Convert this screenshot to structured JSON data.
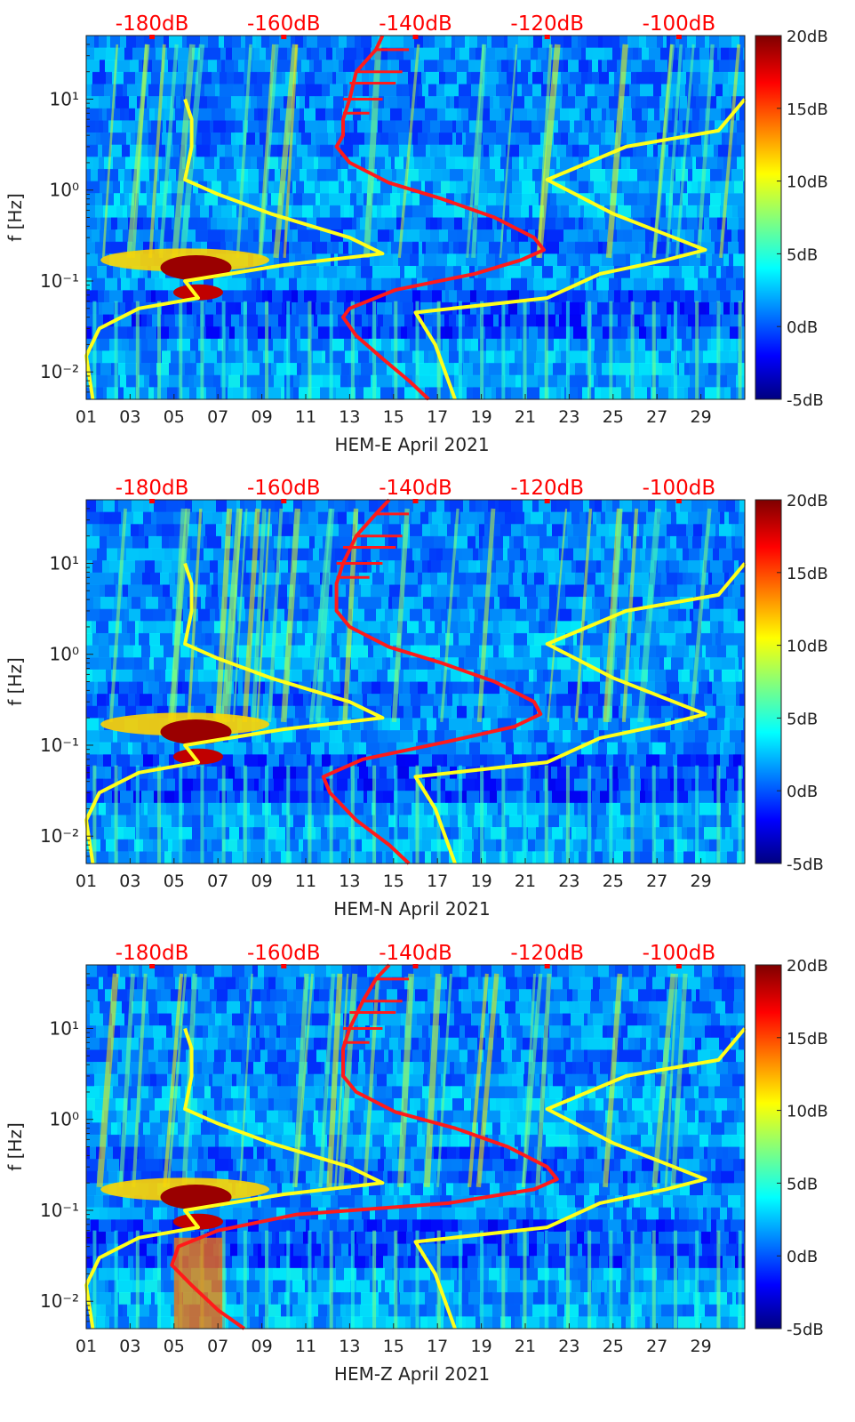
{
  "figure": {
    "panels": [
      {
        "xlabel": "HEM-E April 2021",
        "ylabel": "f [Hz]",
        "top_ticks": [
          "-180dB",
          "-160dB",
          "-140dB",
          "-120dB",
          "-100dB"
        ],
        "x_ticks": [
          "01",
          "03",
          "05",
          "07",
          "09",
          "11",
          "13",
          "15",
          "17",
          "19",
          "21",
          "23",
          "25",
          "27",
          "29"
        ],
        "y_ticks": [
          "10⁻²",
          "10⁻¹",
          "10⁰",
          "10¹"
        ],
        "colorbar_ticks": [
          "20dB",
          "15dB",
          "10dB",
          "5dB",
          "0dB",
          "-5dB"
        ]
      },
      {
        "xlabel": "HEM-N April 2021",
        "ylabel": "f [Hz]",
        "top_ticks": [
          "-180dB",
          "-160dB",
          "-140dB",
          "-120dB",
          "-100dB"
        ],
        "x_ticks": [
          "01",
          "03",
          "05",
          "07",
          "09",
          "11",
          "13",
          "15",
          "17",
          "19",
          "21",
          "23",
          "25",
          "27",
          "29"
        ],
        "y_ticks": [
          "10⁻²",
          "10⁻¹",
          "10⁰",
          "10¹"
        ],
        "colorbar_ticks": [
          "20dB",
          "15dB",
          "10dB",
          "5dB",
          "0dB",
          "-5dB"
        ]
      },
      {
        "xlabel": "HEM-Z April 2021",
        "ylabel": "f [Hz]",
        "top_ticks": [
          "-180dB",
          "-160dB",
          "-140dB",
          "-120dB",
          "-100dB"
        ],
        "x_ticks": [
          "01",
          "03",
          "05",
          "07",
          "09",
          "11",
          "13",
          "15",
          "17",
          "19",
          "21",
          "23",
          "25",
          "27",
          "29"
        ],
        "y_ticks": [
          "10⁻²",
          "10⁻¹",
          "10⁰",
          "10¹"
        ],
        "colorbar_ticks": [
          "20dB",
          "15dB",
          "10dB",
          "5dB",
          "0dB",
          "-5dB"
        ]
      }
    ]
  },
  "chart_data": [
    {
      "type": "heatmap",
      "title": "",
      "xlabel": "HEM-E April 2021",
      "ylabel": "f [Hz]",
      "x_unit": "day of April 2021",
      "xlim": [
        1,
        31
      ],
      "ylim": [
        0.005,
        50
      ],
      "y_scale": "log",
      "colorbar": {
        "range": [
          -5,
          20
        ],
        "unit": "dB",
        "colormap": "jet",
        "ticks": [
          20,
          15,
          10,
          5,
          0,
          -5
        ]
      },
      "top_axis": {
        "label_color": "#ff0000",
        "range": [
          -190,
          -90
        ],
        "unit": "dB",
        "ticks": [
          -180,
          -160,
          -140,
          -120,
          -100
        ]
      },
      "series": [
        {
          "color": "#ff1a1a",
          "points": [
            [
              -145,
              50
            ],
            [
              -146,
              35
            ],
            [
              -149,
              20
            ],
            [
              -150,
              10
            ],
            [
              -151,
              6
            ],
            [
              -151,
              4
            ],
            [
              -152,
              3
            ],
            [
              -150,
              2
            ],
            [
              -144,
              1.2
            ],
            [
              -136,
              0.8
            ],
            [
              -128,
              0.5
            ],
            [
              -122,
              0.3
            ],
            [
              -120.5,
              0.22
            ],
            [
              -124,
              0.17
            ],
            [
              -131,
              0.12
            ],
            [
              -143,
              0.08
            ],
            [
              -150,
              0.05
            ],
            [
              -151,
              0.04
            ],
            [
              -149,
              0.025
            ],
            [
              -145,
              0.014
            ],
            [
              -141,
              0.008
            ],
            [
              -138,
              0.005
            ]
          ]
        },
        {
          "color": "#ffff1a",
          "points": [
            [
              -175,
              10
            ],
            [
              -174,
              6
            ],
            [
              -174,
              3
            ],
            [
              -175,
              1.3
            ],
            [
              -170,
              0.9
            ],
            [
              -162,
              0.55
            ],
            [
              -150,
              0.3
            ],
            [
              -145,
              0.2
            ],
            [
              -160,
              0.15
            ],
            [
              -175,
              0.1
            ],
            [
              -173,
              0.065
            ],
            [
              -182,
              0.05
            ],
            [
              -188,
              0.03
            ],
            [
              -190,
              0.015
            ],
            [
              -189,
              0.005
            ]
          ]
        },
        {
          "color": "#ffff1a",
          "points": [
            [
              -90,
              10
            ],
            [
              -94,
              4.5
            ],
            [
              -108,
              3
            ],
            [
              -120,
              1.3
            ],
            [
              -110,
              0.55
            ],
            [
              -96,
              0.22
            ],
            [
              -102,
              0.17
            ],
            [
              -112,
              0.12
            ],
            [
              -120,
              0.065
            ],
            [
              -140,
              0.045
            ],
            [
              -137,
              0.02
            ],
            [
              -134,
              0.005
            ]
          ]
        }
      ]
    },
    {
      "type": "heatmap",
      "title": "",
      "xlabel": "HEM-N April 2021",
      "ylabel": "f [Hz]",
      "x_unit": "day of April 2021",
      "xlim": [
        1,
        31
      ],
      "ylim": [
        0.005,
        50
      ],
      "y_scale": "log",
      "colorbar": {
        "range": [
          -5,
          20
        ],
        "unit": "dB",
        "colormap": "jet",
        "ticks": [
          20,
          15,
          10,
          5,
          0,
          -5
        ]
      },
      "top_axis": {
        "label_color": "#ff0000",
        "range": [
          -190,
          -90
        ],
        "unit": "dB",
        "ticks": [
          -180,
          -160,
          -140,
          -120,
          -100
        ]
      },
      "series": [
        {
          "color": "#ff1a1a",
          "points": [
            [
              -144,
              50
            ],
            [
              -146,
              35
            ],
            [
              -149,
              20
            ],
            [
              -151,
              10
            ],
            [
              -152,
              6
            ],
            [
              -152,
              4
            ],
            [
              -152,
              3
            ],
            [
              -150,
              2
            ],
            [
              -144,
              1.2
            ],
            [
              -136,
              0.8
            ],
            [
              -128,
              0.5
            ],
            [
              -122,
              0.3
            ],
            [
              -121,
              0.22
            ],
            [
              -125,
              0.16
            ],
            [
              -135,
              0.11
            ],
            [
              -148,
              0.07
            ],
            [
              -154,
              0.045
            ],
            [
              -153,
              0.03
            ],
            [
              -149,
              0.015
            ],
            [
              -144,
              0.008
            ],
            [
              -141,
              0.005
            ]
          ]
        },
        {
          "color": "#ffff1a",
          "points": [
            [
              -175,
              10
            ],
            [
              -174,
              6
            ],
            [
              -174,
              3
            ],
            [
              -175,
              1.3
            ],
            [
              -170,
              0.9
            ],
            [
              -162,
              0.55
            ],
            [
              -150,
              0.3
            ],
            [
              -145,
              0.2
            ],
            [
              -160,
              0.15
            ],
            [
              -175,
              0.1
            ],
            [
              -173,
              0.065
            ],
            [
              -182,
              0.05
            ],
            [
              -188,
              0.03
            ],
            [
              -190,
              0.015
            ],
            [
              -189,
              0.005
            ]
          ]
        },
        {
          "color": "#ffff1a",
          "points": [
            [
              -90,
              10
            ],
            [
              -94,
              4.5
            ],
            [
              -108,
              3
            ],
            [
              -120,
              1.3
            ],
            [
              -110,
              0.55
            ],
            [
              -96,
              0.22
            ],
            [
              -102,
              0.17
            ],
            [
              -112,
              0.12
            ],
            [
              -120,
              0.065
            ],
            [
              -140,
              0.045
            ],
            [
              -137,
              0.02
            ],
            [
              -134,
              0.005
            ]
          ]
        }
      ]
    },
    {
      "type": "heatmap",
      "title": "",
      "xlabel": "HEM-Z April 2021",
      "ylabel": "f [Hz]",
      "x_unit": "day of April 2021",
      "xlim": [
        1,
        31
      ],
      "ylim": [
        0.005,
        50
      ],
      "y_scale": "log",
      "colorbar": {
        "range": [
          -5,
          20
        ],
        "unit": "dB",
        "colormap": "jet",
        "ticks": [
          20,
          15,
          10,
          5,
          0,
          -5
        ]
      },
      "top_axis": {
        "label_color": "#ff0000",
        "range": [
          -190,
          -90
        ],
        "unit": "dB",
        "ticks": [
          -180,
          -160,
          -140,
          -120,
          -100
        ]
      },
      "series": [
        {
          "color": "#ff1a1a",
          "points": [
            [
              -144,
              50
            ],
            [
              -146,
              35
            ],
            [
              -148,
              20
            ],
            [
              -150,
              10
            ],
            [
              -151,
              6
            ],
            [
              -151,
              4
            ],
            [
              -151,
              3
            ],
            [
              -149,
              2
            ],
            [
              -143,
              1.2
            ],
            [
              -134,
              0.8
            ],
            [
              -126,
              0.5
            ],
            [
              -120,
              0.3
            ],
            [
              -118.5,
              0.22
            ],
            [
              -122,
              0.17
            ],
            [
              -135,
              0.12
            ],
            [
              -158,
              0.09
            ],
            [
              -170,
              0.06
            ],
            [
              -176,
              0.04
            ],
            [
              -177,
              0.025
            ],
            [
              -174,
              0.015
            ],
            [
              -170,
              0.008
            ],
            [
              -166,
              0.005
            ]
          ]
        },
        {
          "color": "#ffff1a",
          "points": [
            [
              -175,
              10
            ],
            [
              -174,
              6
            ],
            [
              -174,
              3
            ],
            [
              -175,
              1.3
            ],
            [
              -170,
              0.9
            ],
            [
              -162,
              0.55
            ],
            [
              -150,
              0.3
            ],
            [
              -145,
              0.2
            ],
            [
              -160,
              0.15
            ],
            [
              -175,
              0.1
            ],
            [
              -173,
              0.065
            ],
            [
              -182,
              0.05
            ],
            [
              -188,
              0.03
            ],
            [
              -190,
              0.015
            ],
            [
              -189,
              0.005
            ]
          ]
        },
        {
          "color": "#ffff1a",
          "points": [
            [
              -90,
              10
            ],
            [
              -94,
              4.5
            ],
            [
              -108,
              3
            ],
            [
              -120,
              1.3
            ],
            [
              -110,
              0.55
            ],
            [
              -96,
              0.22
            ],
            [
              -102,
              0.17
            ],
            [
              -112,
              0.12
            ],
            [
              -120,
              0.065
            ],
            [
              -140,
              0.045
            ],
            [
              -137,
              0.02
            ],
            [
              -134,
              0.005
            ]
          ]
        }
      ]
    }
  ]
}
